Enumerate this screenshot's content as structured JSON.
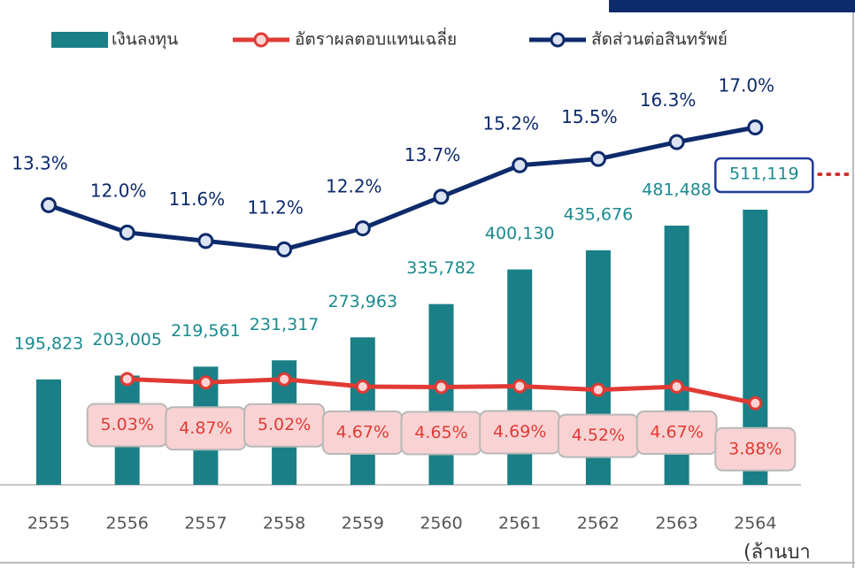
{
  "chart_data": {
    "type": "bar-line",
    "categories": [
      "2555",
      "2556",
      "2557",
      "2558",
      "2559",
      "2560",
      "2561",
      "2562",
      "2563",
      "2564"
    ],
    "series": [
      {
        "name": "เงินลงทุน",
        "type": "bar",
        "color": "#1a7f86",
        "values": [
          195823,
          203005,
          219561,
          231317,
          273963,
          335782,
          400130,
          435676,
          481488,
          511119
        ],
        "value_labels": [
          "195,823",
          "203,005",
          "219,561",
          "231,317",
          "273,963",
          "335,782",
          "400,130",
          "435,676",
          "481,488",
          "511,119"
        ]
      },
      {
        "name": "อัตราผลตอบแทนเฉลี่ย",
        "type": "line",
        "color": "#e03a35",
        "values": [
          null,
          5.03,
          4.87,
          5.02,
          4.67,
          4.65,
          4.69,
          4.52,
          4.67,
          3.88
        ],
        "value_labels": [
          null,
          "5.03%",
          "4.87%",
          "5.02%",
          "4.67%",
          "4.65%",
          "4.69%",
          "4.52%",
          "4.67%",
          "3.88%"
        ]
      },
      {
        "name": "สัดส่วนต่อสินทรัพย์",
        "type": "line",
        "color": "#0d2a6b",
        "values": [
          13.3,
          12.0,
          11.6,
          11.2,
          12.2,
          13.7,
          15.2,
          15.5,
          16.3,
          17.0
        ],
        "value_labels": [
          "13.3%",
          "12.0%",
          "11.6%",
          "11.2%",
          "12.2%",
          "13.7%",
          "15.2%",
          "15.5%",
          "16.3%",
          "17.0%"
        ]
      }
    ],
    "unit_note": "(ล้านบา"
  }
}
